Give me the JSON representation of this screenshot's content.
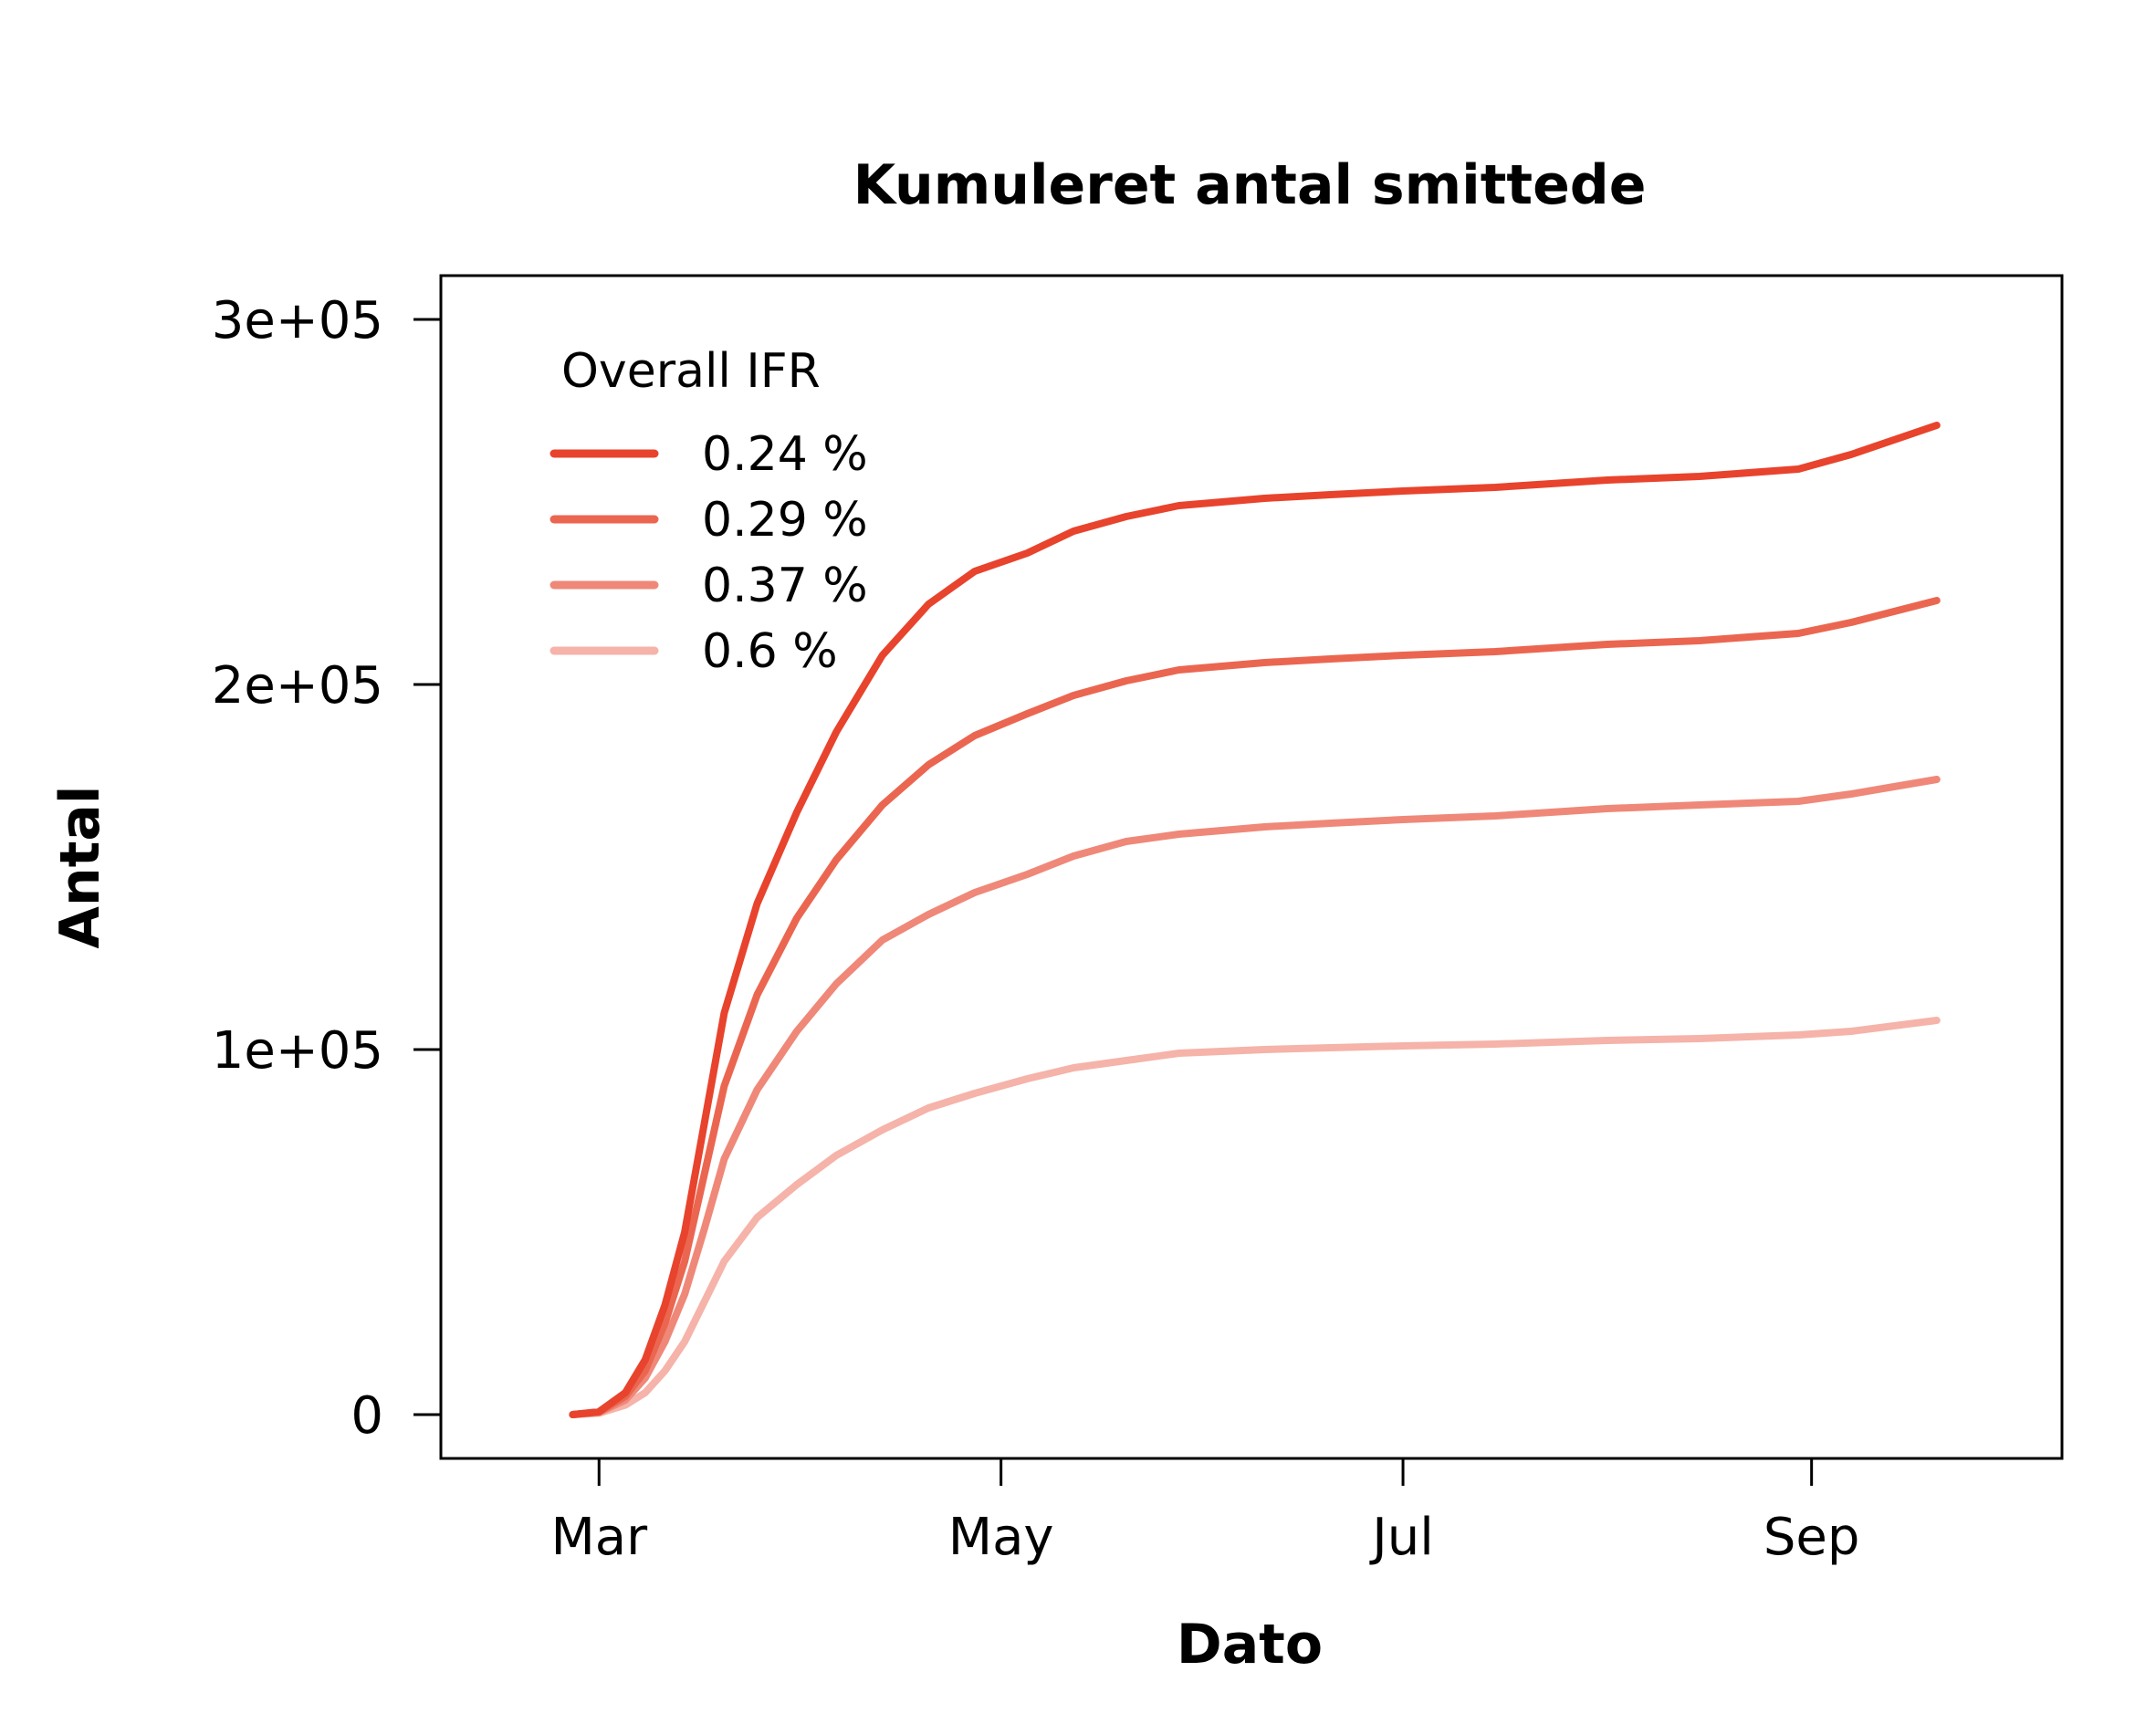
{
  "chart_data": {
    "type": "line",
    "title": "Kumuleret antal smittede",
    "xlabel": "Dato",
    "ylabel": "Antal",
    "x_ticks": [
      {
        "label": "Mar",
        "value": "2020-03-01"
      },
      {
        "label": "May",
        "value": "2020-05-01"
      },
      {
        "label": "Jul",
        "value": "2020-07-01"
      },
      {
        "label": "Sep",
        "value": "2020-09-01"
      }
    ],
    "y_ticks": [
      {
        "label": "0",
        "value": 0
      },
      {
        "label": "1e+05",
        "value": 100000
      },
      {
        "label": "2e+05",
        "value": 200000
      },
      {
        "label": "3e+05",
        "value": 300000
      }
    ],
    "xlim": [
      "2020-02-06",
      "2020-10-09"
    ],
    "ylim": [
      -12000,
      312000
    ],
    "grid": false,
    "legend": {
      "title": "Overall IFR",
      "position": "top-left"
    },
    "x": [
      "2020-02-26",
      "2020-03-01",
      "2020-03-05",
      "2020-03-08",
      "2020-03-11",
      "2020-03-14",
      "2020-03-17",
      "2020-03-20",
      "2020-03-25",
      "2020-03-31",
      "2020-04-06",
      "2020-04-13",
      "2020-04-20",
      "2020-04-27",
      "2020-05-05",
      "2020-05-12",
      "2020-05-20",
      "2020-05-28",
      "2020-06-10",
      "2020-06-20",
      "2020-07-01",
      "2020-07-15",
      "2020-08-01",
      "2020-08-15",
      "2020-08-30",
      "2020-09-07",
      "2020-09-20"
    ],
    "series": [
      {
        "name": "0.24 %",
        "color": "#E8432D",
        "values": [
          0,
          800,
          6000,
          15000,
          30000,
          50000,
          80000,
          110000,
          140000,
          165000,
          187000,
          208000,
          222000,
          231000,
          236000,
          242000,
          246000,
          249000,
          251000,
          252000,
          253000,
          254000,
          256000,
          257000,
          259000,
          263000,
          271000
        ]
      },
      {
        "name": "0.29 %",
        "color": "#EB6650",
        "values": [
          0,
          700,
          5000,
          12000,
          25000,
          42000,
          66000,
          90000,
          115000,
          136000,
          152000,
          167000,
          178000,
          186000,
          192000,
          197000,
          201000,
          204000,
          206000,
          207000,
          208000,
          209000,
          211000,
          212000,
          214000,
          217000,
          223000
        ]
      },
      {
        "name": "0.37 %",
        "color": "#EF8878",
        "values": [
          0,
          600,
          4000,
          10000,
          20000,
          33000,
          51000,
          70000,
          89000,
          105000,
          118000,
          130000,
          137000,
          143000,
          148000,
          153000,
          157000,
          159000,
          161000,
          162000,
          163000,
          164000,
          166000,
          167000,
          168000,
          170000,
          174000
        ]
      },
      {
        "name": "0.6 %",
        "color": "#F5B3A9",
        "values": [
          0,
          400,
          2600,
          6000,
          12000,
          20000,
          31000,
          42000,
          54000,
          63000,
          71000,
          78000,
          84000,
          88000,
          92000,
          95000,
          97000,
          99000,
          100000,
          100500,
          101000,
          101500,
          102500,
          103000,
          104000,
          105000,
          108000
        ]
      }
    ]
  }
}
